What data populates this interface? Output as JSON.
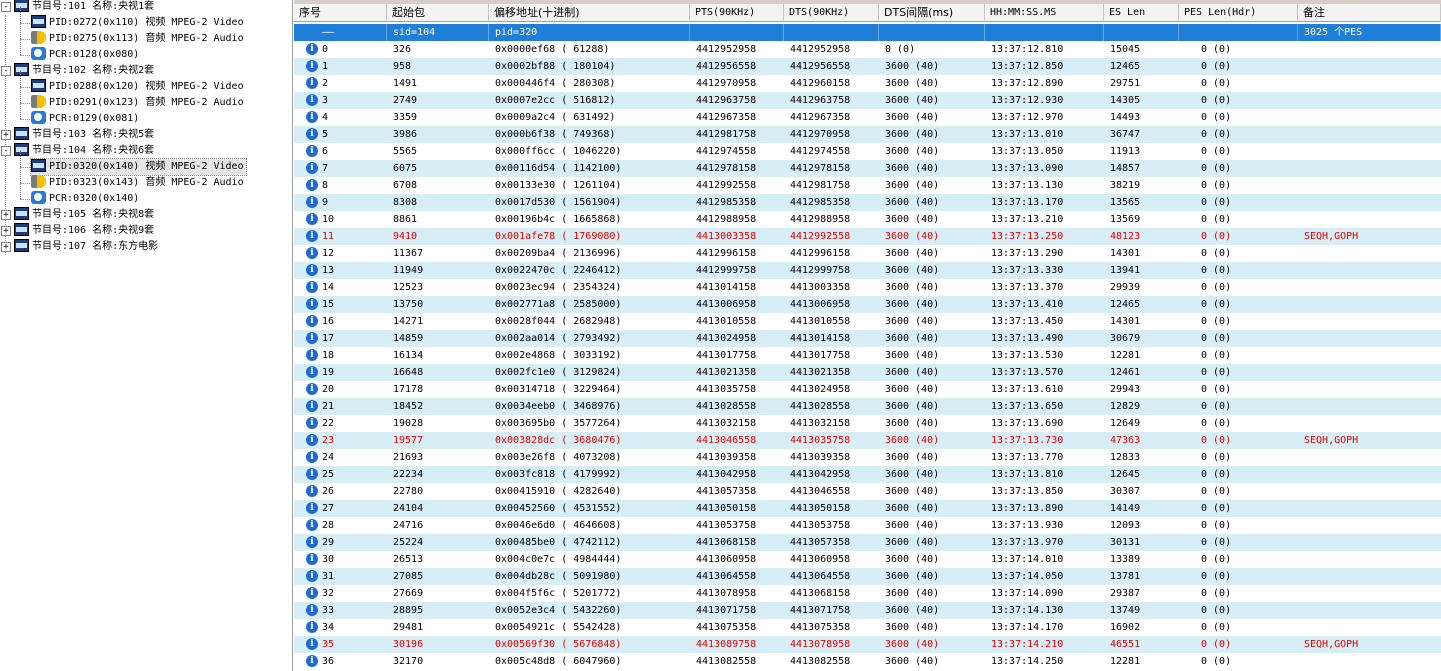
{
  "tree": [
    {
      "type": "program",
      "level": 0,
      "expander": "-",
      "label": "节目号:101 名称:央视1套"
    },
    {
      "type": "video",
      "level": 1,
      "label": "PID:0272(0x110) 视频 MPEG-2 Video"
    },
    {
      "type": "audio",
      "level": 1,
      "label": "PID:0275(0x113) 音频 MPEG-2 Audio"
    },
    {
      "type": "pcr",
      "level": 1,
      "label": "PCR:0128(0x080)"
    },
    {
      "type": "program",
      "level": 0,
      "expander": "-",
      "label": "节目号:102 名称:央视2套"
    },
    {
      "type": "video",
      "level": 1,
      "label": "PID:0288(0x120) 视频 MPEG-2 Video"
    },
    {
      "type": "audio",
      "level": 1,
      "label": "PID:0291(0x123) 音频 MPEG-2 Audio"
    },
    {
      "type": "pcr",
      "level": 1,
      "label": "PCR:0129(0x081)"
    },
    {
      "type": "program",
      "level": 0,
      "expander": "+",
      "label": "节目号:103 名称:央视5套"
    },
    {
      "type": "program",
      "level": 0,
      "expander": "-",
      "label": "节目号:104 名称:央视6套"
    },
    {
      "type": "video",
      "level": 1,
      "label": "PID:0320(0x140) 视频 MPEG-2 Video",
      "selected": true
    },
    {
      "type": "audio",
      "level": 1,
      "label": "PID:0323(0x143) 音频 MPEG-2 Audio"
    },
    {
      "type": "pcr",
      "level": 1,
      "label": "PCR:0320(0x140)"
    },
    {
      "type": "program",
      "level": 0,
      "expander": "+",
      "label": "节目号:105 名称:央视8套"
    },
    {
      "type": "program",
      "level": 0,
      "expander": "+",
      "label": "节目号:106 名称:央视9套"
    },
    {
      "type": "program",
      "level": 0,
      "expander": "+",
      "label": "节目号:107 名称:东方电影"
    }
  ],
  "columns": [
    "序号",
    "起始包",
    "偏移地址(十进制)",
    "PTS(90KHz)",
    "DTS(90KHz)",
    "DTS间隔(ms)",
    "HH:MM:SS.MS",
    "ES Len",
    "PES Len(Hdr)",
    "备注"
  ],
  "summary": [
    "——",
    "sid=104",
    "pid=320",
    "",
    "",
    "",
    "",
    "",
    "",
    "3025 个PES"
  ],
  "rows": [
    [
      "0",
      "326",
      "0x0000ef68 (   61288)",
      "4412952958",
      "4412952958",
      "0 (0)",
      "13:37:12.810",
      "15045",
      "0 (0)",
      ""
    ],
    [
      "1",
      "958",
      "0x0002bf88 (  180104)",
      "4412956558",
      "4412956558",
      "3600 (40)",
      "13:37:12.850",
      "12465",
      "0 (0)",
      ""
    ],
    [
      "2",
      "1491",
      "0x000446f4 (  280308)",
      "4412970958",
      "4412960158",
      "3600 (40)",
      "13:37:12.890",
      "29751",
      "0 (0)",
      ""
    ],
    [
      "3",
      "2749",
      "0x0007e2cc (  516812)",
      "4412963758",
      "4412963758",
      "3600 (40)",
      "13:37:12.930",
      "14305",
      "0 (0)",
      ""
    ],
    [
      "4",
      "3359",
      "0x0009a2c4 (  631492)",
      "4412967358",
      "4412967358",
      "3600 (40)",
      "13:37:12.970",
      "14493",
      "0 (0)",
      ""
    ],
    [
      "5",
      "3986",
      "0x000b6f38 (  749368)",
      "4412981758",
      "4412970958",
      "3600 (40)",
      "13:37:13.010",
      "36747",
      "0 (0)",
      ""
    ],
    [
      "6",
      "5565",
      "0x000ff6cc ( 1046220)",
      "4412974558",
      "4412974558",
      "3600 (40)",
      "13:37:13.050",
      "11913",
      "0 (0)",
      ""
    ],
    [
      "7",
      "6075",
      "0x00116d54 ( 1142100)",
      "4412978158",
      "4412978158",
      "3600 (40)",
      "13:37:13.090",
      "14857",
      "0 (0)",
      ""
    ],
    [
      "8",
      "6708",
      "0x00133e30 ( 1261104)",
      "4412992558",
      "4412981758",
      "3600 (40)",
      "13:37:13.130",
      "38219",
      "0 (0)",
      ""
    ],
    [
      "9",
      "8308",
      "0x0017d530 ( 1561904)",
      "4412985358",
      "4412985358",
      "3600 (40)",
      "13:37:13.170",
      "13565",
      "0 (0)",
      ""
    ],
    [
      "10",
      "8861",
      "0x00196b4c ( 1665868)",
      "4412988958",
      "4412988958",
      "3600 (40)",
      "13:37:13.210",
      "13569",
      "0 (0)",
      ""
    ],
    [
      "11",
      "9410",
      "0x001afe78 ( 1769080)",
      "4413003358",
      "4412992558",
      "3600 (40)",
      "13:37:13.250",
      "48123",
      "0 (0)",
      "SEQH,GOPH"
    ],
    [
      "12",
      "11367",
      "0x00209ba4 ( 2136996)",
      "4412996158",
      "4412996158",
      "3600 (40)",
      "13:37:13.290",
      "14301",
      "0 (0)",
      ""
    ],
    [
      "13",
      "11949",
      "0x0022470c ( 2246412)",
      "4412999758",
      "4412999758",
      "3600 (40)",
      "13:37:13.330",
      "13941",
      "0 (0)",
      ""
    ],
    [
      "14",
      "12523",
      "0x0023ec94 ( 2354324)",
      "4413014158",
      "4413003358",
      "3600 (40)",
      "13:37:13.370",
      "29939",
      "0 (0)",
      ""
    ],
    [
      "15",
      "13750",
      "0x002771a8 ( 2585000)",
      "4413006958",
      "4413006958",
      "3600 (40)",
      "13:37:13.410",
      "12465",
      "0 (0)",
      ""
    ],
    [
      "16",
      "14271",
      "0x0028f044 ( 2682948)",
      "4413010558",
      "4413010558",
      "3600 (40)",
      "13:37:13.450",
      "14301",
      "0 (0)",
      ""
    ],
    [
      "17",
      "14859",
      "0x002aa014 ( 2793492)",
      "4413024958",
      "4413014158",
      "3600 (40)",
      "13:37:13.490",
      "30679",
      "0 (0)",
      ""
    ],
    [
      "18",
      "16134",
      "0x002e4868 ( 3033192)",
      "4413017758",
      "4413017758",
      "3600 (40)",
      "13:37:13.530",
      "12281",
      "0 (0)",
      ""
    ],
    [
      "19",
      "16648",
      "0x002fc1e0 ( 3129824)",
      "4413021358",
      "4413021358",
      "3600 (40)",
      "13:37:13.570",
      "12461",
      "0 (0)",
      ""
    ],
    [
      "20",
      "17178",
      "0x00314718 ( 3229464)",
      "4413035758",
      "4413024958",
      "3600 (40)",
      "13:37:13.610",
      "29943",
      "0 (0)",
      ""
    ],
    [
      "21",
      "18452",
      "0x0034eeb0 ( 3468976)",
      "4413028558",
      "4413028558",
      "3600 (40)",
      "13:37:13.650",
      "12829",
      "0 (0)",
      ""
    ],
    [
      "22",
      "19028",
      "0x003695b0 ( 3577264)",
      "4413032158",
      "4413032158",
      "3600 (40)",
      "13:37:13.690",
      "12649",
      "0 (0)",
      ""
    ],
    [
      "23",
      "19577",
      "0x003828dc ( 3680476)",
      "4413046558",
      "4413035758",
      "3600 (40)",
      "13:37:13.730",
      "47363",
      "0 (0)",
      "SEQH,GOPH"
    ],
    [
      "24",
      "21693",
      "0x003e26f8 ( 4073208)",
      "4413039358",
      "4413039358",
      "3600 (40)",
      "13:37:13.770",
      "12833",
      "0 (0)",
      ""
    ],
    [
      "25",
      "22234",
      "0x003fc818 ( 4179992)",
      "4413042958",
      "4413042958",
      "3600 (40)",
      "13:37:13.810",
      "12645",
      "0 (0)",
      ""
    ],
    [
      "26",
      "22780",
      "0x00415910 ( 4282640)",
      "4413057358",
      "4413046558",
      "3600 (40)",
      "13:37:13.850",
      "30307",
      "0 (0)",
      ""
    ],
    [
      "27",
      "24104",
      "0x00452560 ( 4531552)",
      "4413050158",
      "4413050158",
      "3600 (40)",
      "13:37:13.890",
      "14149",
      "0 (0)",
      ""
    ],
    [
      "28",
      "24716",
      "0x0046e6d0 ( 4646608)",
      "4413053758",
      "4413053758",
      "3600 (40)",
      "13:37:13.930",
      "12093",
      "0 (0)",
      ""
    ],
    [
      "29",
      "25224",
      "0x00485be0 ( 4742112)",
      "4413068158",
      "4413057358",
      "3600 (40)",
      "13:37:13.970",
      "30131",
      "0 (0)",
      ""
    ],
    [
      "30",
      "26513",
      "0x004c0e7c ( 4984444)",
      "4413060958",
      "4413060958",
      "3600 (40)",
      "13:37:14.010",
      "13389",
      "0 (0)",
      ""
    ],
    [
      "31",
      "27085",
      "0x004db28c ( 5091980)",
      "4413064558",
      "4413064558",
      "3600 (40)",
      "13:37:14.050",
      "13781",
      "0 (0)",
      ""
    ],
    [
      "32",
      "27669",
      "0x004f5f6c ( 5201772)",
      "4413078958",
      "4413068158",
      "3600 (40)",
      "13:37:14.090",
      "29387",
      "0 (0)",
      ""
    ],
    [
      "33",
      "28895",
      "0x0052e3c4 ( 5432260)",
      "4413071758",
      "4413071758",
      "3600 (40)",
      "13:37:14.130",
      "13749",
      "0 (0)",
      ""
    ],
    [
      "34",
      "29481",
      "0x0054921c ( 5542428)",
      "4413075358",
      "4413075358",
      "3600 (40)",
      "13:37:14.170",
      "16902",
      "0 (0)",
      ""
    ],
    [
      "35",
      "30196",
      "0x00569f30 ( 5676848)",
      "4413089758",
      "4413078958",
      "3600 (40)",
      "13:37:14.210",
      "46551",
      "0 (0)",
      "SEQH,GOPH"
    ],
    [
      "36",
      "32170",
      "0x005c48d8 ( 6047960)",
      "4413082558",
      "4413082558",
      "3600 (40)",
      "13:37:14.250",
      "12281",
      "0 (0)",
      ""
    ]
  ],
  "highlight_rows": [
    "11",
    "23",
    "35"
  ],
  "info_icon_glyph": "i",
  "colors": {
    "summary_bg": "#1f7fd8",
    "alt_row_bg": "#d8eef6",
    "highlight_text": "#e00000"
  }
}
